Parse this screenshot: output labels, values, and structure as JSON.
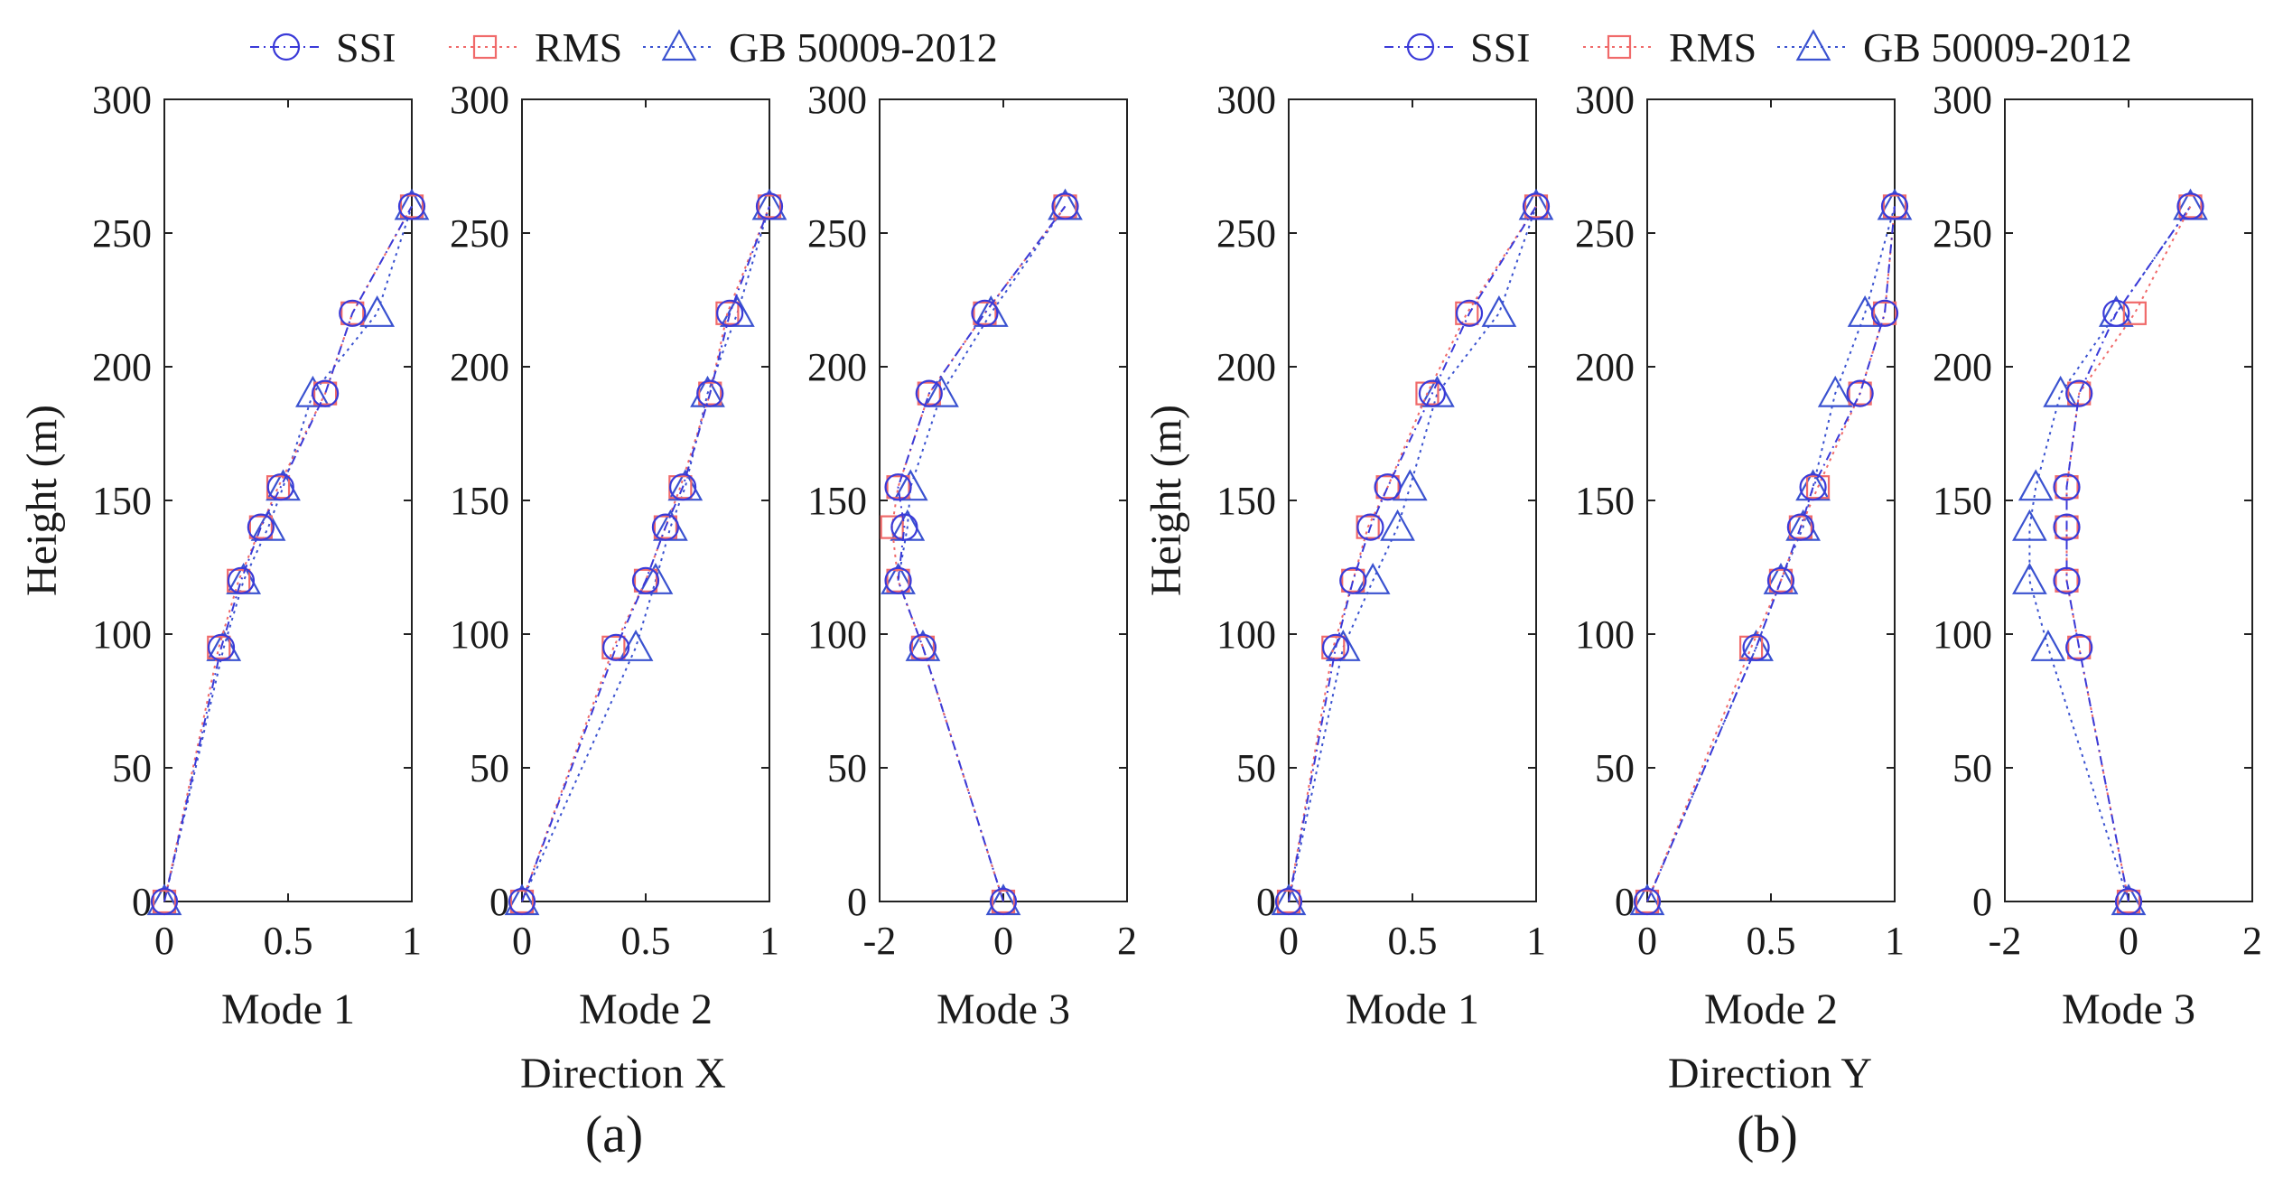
{
  "legend": {
    "items": [
      {
        "label": "SSI",
        "color": "#3a3ad8",
        "marker": "circle",
        "dash": "dashdot"
      },
      {
        "label": "RMS",
        "color": "#f06a6a",
        "marker": "square",
        "dash": "dotted"
      },
      {
        "label": "GB 50009-2012",
        "color": "#3a52d0",
        "marker": "triangle",
        "dash": "dotted"
      }
    ]
  },
  "groups": [
    {
      "direction_label": "Direction X",
      "panel_label": "(a)"
    },
    {
      "direction_label": "Direction Y",
      "panel_label": "(b)"
    }
  ],
  "chart_data": [
    {
      "type": "line",
      "group": "a",
      "xlabel": "Mode 1",
      "ylabel": "Height (m)",
      "show_ylabel": true,
      "xlim": [
        0,
        1
      ],
      "xticks": [
        0,
        0.5,
        1
      ],
      "xtick_labels": [
        "0",
        "0.5",
        "1"
      ],
      "ylim": [
        0,
        300
      ],
      "yticks": [
        0,
        50,
        100,
        150,
        200,
        250,
        300
      ],
      "series": [
        {
          "name": "SSI",
          "x": [
            0,
            0.23,
            0.31,
            0.39,
            0.47,
            0.65,
            0.76,
            1.0
          ],
          "y": [
            0,
            95,
            120,
            140,
            155,
            190,
            220,
            260
          ]
        },
        {
          "name": "RMS",
          "x": [
            0,
            0.22,
            0.3,
            0.39,
            0.46,
            0.65,
            0.76,
            1.0
          ],
          "y": [
            0,
            95,
            120,
            140,
            155,
            190,
            220,
            260
          ]
        },
        {
          "name": "GB 50009-2012",
          "x": [
            0,
            0.24,
            0.32,
            0.42,
            0.48,
            0.6,
            0.86,
            1.0
          ],
          "y": [
            0,
            95,
            120,
            140,
            155,
            190,
            220,
            260
          ]
        }
      ]
    },
    {
      "type": "line",
      "group": "a",
      "xlabel": "Mode 2",
      "ylabel": "",
      "show_ylabel": false,
      "xlim": [
        0,
        1
      ],
      "xticks": [
        0,
        0.5,
        1
      ],
      "xtick_labels": [
        "0",
        "0.5",
        "1"
      ],
      "ylim": [
        0,
        300
      ],
      "yticks": [
        0,
        50,
        100,
        150,
        200,
        250,
        300
      ],
      "series": [
        {
          "name": "SSI",
          "x": [
            0,
            0.38,
            0.5,
            0.58,
            0.65,
            0.76,
            0.84,
            1.0
          ],
          "y": [
            0,
            95,
            120,
            140,
            155,
            190,
            220,
            260
          ]
        },
        {
          "name": "RMS",
          "x": [
            0,
            0.37,
            0.5,
            0.58,
            0.64,
            0.76,
            0.83,
            1.0
          ],
          "y": [
            0,
            95,
            120,
            140,
            155,
            190,
            220,
            260
          ]
        },
        {
          "name": "GB 50009-2012",
          "x": [
            0,
            0.46,
            0.54,
            0.6,
            0.66,
            0.75,
            0.87,
            1.0
          ],
          "y": [
            0,
            95,
            120,
            140,
            155,
            190,
            220,
            260
          ]
        }
      ]
    },
    {
      "type": "line",
      "group": "a",
      "xlabel": "Mode 3",
      "ylabel": "",
      "show_ylabel": false,
      "xlim": [
        -2,
        2
      ],
      "xticks": [
        -2,
        0,
        2
      ],
      "xtick_labels": [
        "-2",
        "0",
        "2"
      ],
      "ylim": [
        0,
        300
      ],
      "yticks": [
        0,
        50,
        100,
        150,
        200,
        250,
        300
      ],
      "series": [
        {
          "name": "SSI",
          "x": [
            0,
            -1.3,
            -1.7,
            -1.6,
            -1.7,
            -1.2,
            -0.3,
            1.0
          ],
          "y": [
            0,
            95,
            120,
            140,
            155,
            190,
            220,
            260
          ]
        },
        {
          "name": "RMS",
          "x": [
            0,
            -1.3,
            -1.7,
            -1.8,
            -1.7,
            -1.2,
            -0.3,
            1.0
          ],
          "y": [
            0,
            95,
            120,
            140,
            155,
            190,
            220,
            260
          ]
        },
        {
          "name": "GB 50009-2012",
          "x": [
            0,
            -1.3,
            -1.7,
            -1.55,
            -1.5,
            -1.0,
            -0.2,
            1.0
          ],
          "y": [
            0,
            95,
            120,
            140,
            155,
            190,
            220,
            260
          ]
        }
      ]
    },
    {
      "type": "line",
      "group": "b",
      "xlabel": "Mode 1",
      "ylabel": "Height (m)",
      "show_ylabel": true,
      "xlim": [
        0,
        1
      ],
      "xticks": [
        0,
        0.5,
        1
      ],
      "xtick_labels": [
        "0",
        "0.5",
        "1"
      ],
      "ylim": [
        0,
        300
      ],
      "yticks": [
        0,
        50,
        100,
        150,
        200,
        250,
        300
      ],
      "series": [
        {
          "name": "SSI",
          "x": [
            0,
            0.19,
            0.26,
            0.33,
            0.4,
            0.58,
            0.73,
            1.0
          ],
          "y": [
            0,
            95,
            120,
            140,
            155,
            190,
            220,
            260
          ]
        },
        {
          "name": "RMS",
          "x": [
            0,
            0.18,
            0.26,
            0.32,
            0.4,
            0.56,
            0.72,
            1.0
          ],
          "y": [
            0,
            95,
            120,
            140,
            155,
            190,
            220,
            260
          ]
        },
        {
          "name": "GB 50009-2012",
          "x": [
            0,
            0.22,
            0.34,
            0.44,
            0.49,
            0.6,
            0.85,
            1.0
          ],
          "y": [
            0,
            95,
            120,
            140,
            155,
            190,
            220,
            260
          ]
        }
      ]
    },
    {
      "type": "line",
      "group": "b",
      "xlabel": "Mode 2",
      "ylabel": "",
      "show_ylabel": false,
      "xlim": [
        0,
        1
      ],
      "xticks": [
        0,
        0.5,
        1
      ],
      "xtick_labels": [
        "0",
        "0.5",
        "1"
      ],
      "ylim": [
        0,
        300
      ],
      "yticks": [
        0,
        50,
        100,
        150,
        200,
        250,
        300
      ],
      "series": [
        {
          "name": "SSI",
          "x": [
            0,
            0.44,
            0.54,
            0.62,
            0.67,
            0.86,
            0.96,
            1.0
          ],
          "y": [
            0,
            95,
            120,
            140,
            155,
            190,
            220,
            260
          ]
        },
        {
          "name": "RMS",
          "x": [
            0,
            0.42,
            0.54,
            0.62,
            0.69,
            0.86,
            0.96,
            1.0
          ],
          "y": [
            0,
            95,
            120,
            140,
            155,
            190,
            220,
            260
          ]
        },
        {
          "name": "GB 50009-2012",
          "x": [
            0,
            0.44,
            0.54,
            0.63,
            0.67,
            0.76,
            0.88,
            1.0
          ],
          "y": [
            0,
            95,
            120,
            140,
            155,
            190,
            220,
            260
          ]
        }
      ]
    },
    {
      "type": "line",
      "group": "b",
      "xlabel": "Mode 3",
      "ylabel": "",
      "show_ylabel": false,
      "xlim": [
        -2,
        2
      ],
      "xticks": [
        -2,
        0,
        2
      ],
      "xtick_labels": [
        "-2",
        "0",
        "2"
      ],
      "ylim": [
        0,
        300
      ],
      "yticks": [
        0,
        50,
        100,
        150,
        200,
        250,
        300
      ],
      "series": [
        {
          "name": "SSI",
          "x": [
            0,
            -0.8,
            -1.0,
            -1.0,
            -1.0,
            -0.8,
            -0.2,
            1.0
          ],
          "y": [
            0,
            95,
            120,
            140,
            155,
            190,
            220,
            260
          ]
        },
        {
          "name": "RMS",
          "x": [
            0,
            -0.8,
            -1.0,
            -1.0,
            -1.0,
            -0.8,
            0.1,
            1.0
          ],
          "y": [
            0,
            95,
            120,
            140,
            155,
            190,
            220,
            260
          ]
        },
        {
          "name": "GB 50009-2012",
          "x": [
            0,
            -1.3,
            -1.6,
            -1.6,
            -1.5,
            -1.1,
            -0.2,
            1.0
          ],
          "y": [
            0,
            95,
            120,
            140,
            155,
            190,
            220,
            260
          ]
        }
      ]
    }
  ]
}
